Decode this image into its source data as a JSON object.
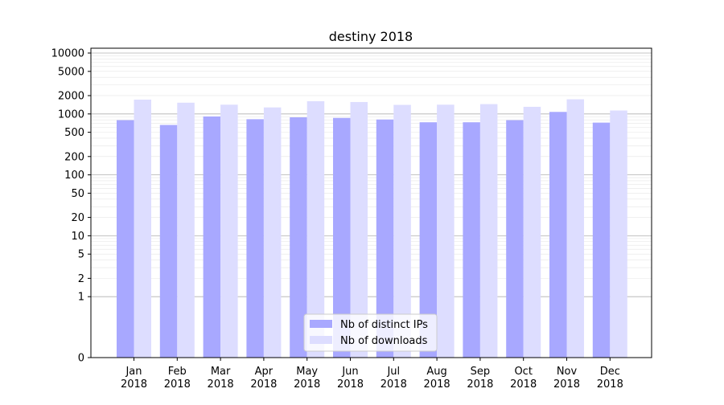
{
  "chart_data": {
    "type": "bar",
    "title": "destiny 2018",
    "xlabel": "",
    "ylabel": "",
    "yscale": "symlog",
    "ylim": [
      0,
      12000
    ],
    "grid": true,
    "legend_position": "bottom-center",
    "yticks": [
      0,
      1,
      2,
      5,
      10,
      20,
      50,
      100,
      200,
      500,
      1000,
      2000,
      5000,
      10000
    ],
    "ytick_labels": [
      "0",
      "1",
      "2",
      "5",
      "10",
      "20",
      "50",
      "100",
      "200",
      "500",
      "1000",
      "2000",
      "5000",
      "10000"
    ],
    "categories": [
      [
        "Jan",
        "2018"
      ],
      [
        "Feb",
        "2018"
      ],
      [
        "Mar",
        "2018"
      ],
      [
        "Apr",
        "2018"
      ],
      [
        "May",
        "2018"
      ],
      [
        "Jun",
        "2018"
      ],
      [
        "Jul",
        "2018"
      ],
      [
        "Aug",
        "2018"
      ],
      [
        "Sep",
        "2018"
      ],
      [
        "Oct",
        "2018"
      ],
      [
        "Nov",
        "2018"
      ],
      [
        "Dec",
        "2018"
      ]
    ],
    "series": [
      {
        "name": "Nb of distinct IPs",
        "color": "#a8a8ff",
        "values": [
          790,
          660,
          910,
          820,
          880,
          860,
          810,
          730,
          730,
          790,
          1080,
          720
        ]
      },
      {
        "name": "Nb of downloads",
        "color": "#ddddff",
        "values": [
          1720,
          1530,
          1420,
          1280,
          1620,
          1570,
          1410,
          1420,
          1450,
          1310,
          1740,
          1140
        ]
      }
    ]
  }
}
